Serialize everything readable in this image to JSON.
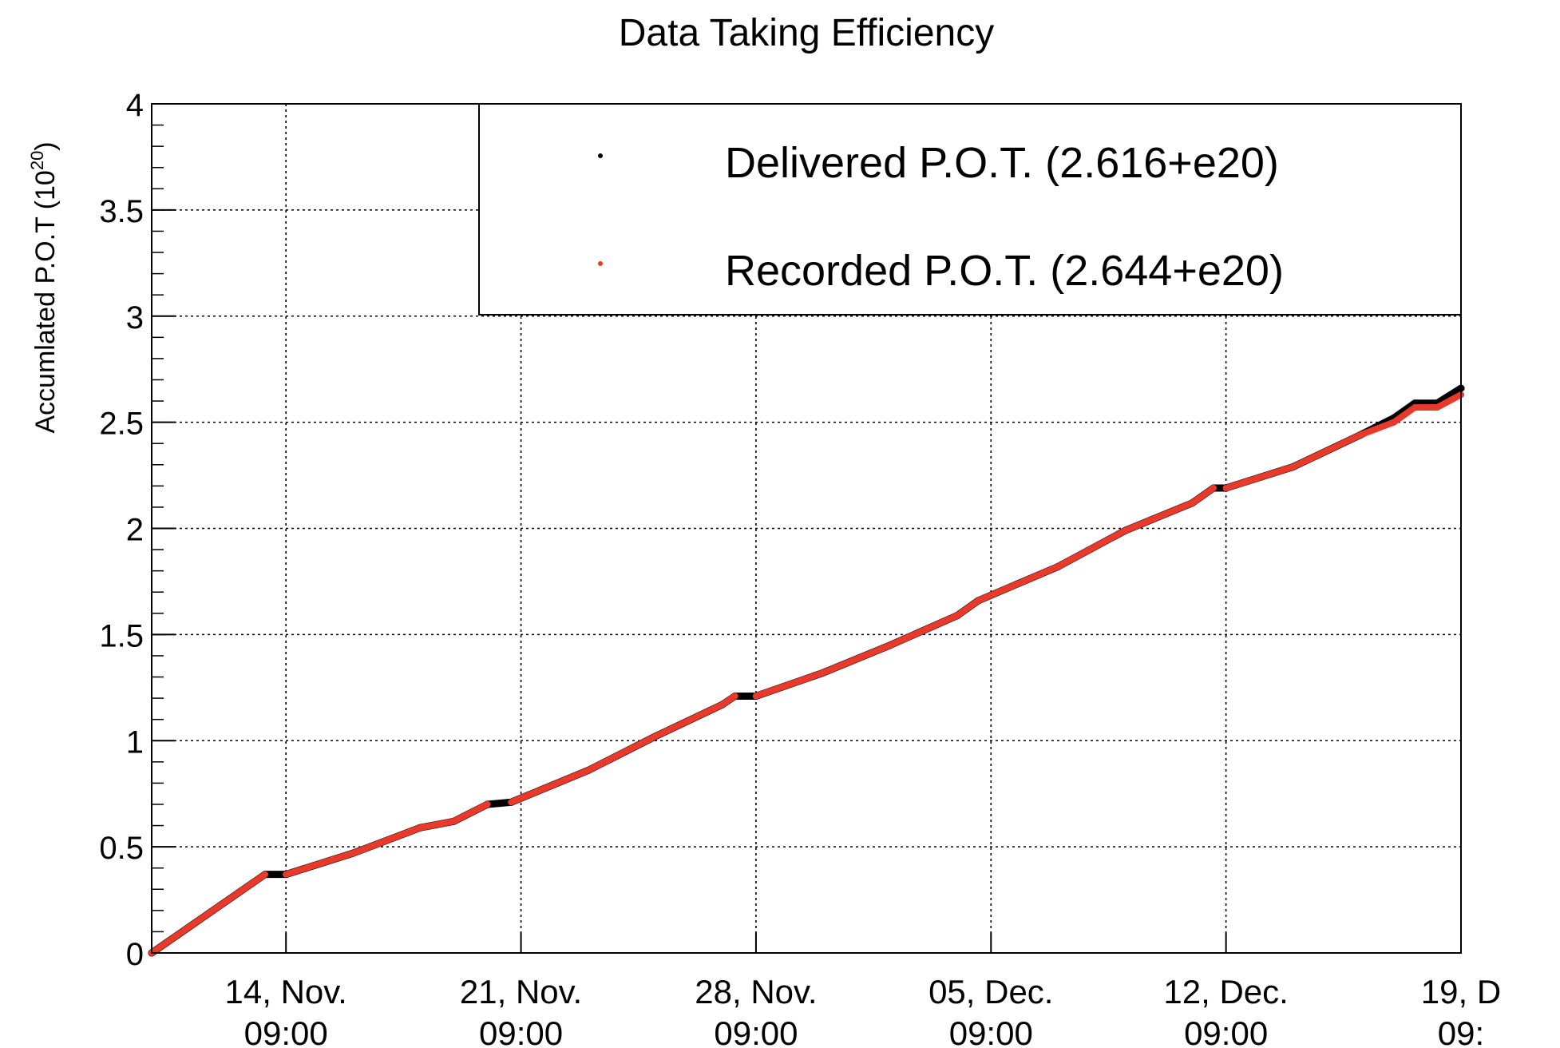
{
  "chart_data": {
    "type": "scatter",
    "title": "Data Taking Efficiency",
    "ylabel": "Accumlated P.O.T (10",
    "ylabel_exponent": "20",
    "ylabel_close": ")",
    "xlabel": "",
    "ylim": [
      0,
      4
    ],
    "xlim": [
      "2024-11-10T09:00",
      "2024-12-19T09:00"
    ],
    "year_note": "year not shown on the axis; dates only as printed",
    "grid": true,
    "legend_position": "top-right",
    "y_ticks": [
      {
        "value": 0,
        "label": "0"
      },
      {
        "value": 0.5,
        "label": "0.5"
      },
      {
        "value": 1,
        "label": "1"
      },
      {
        "value": 1.5,
        "label": "1.5"
      },
      {
        "value": 2,
        "label": "2"
      },
      {
        "value": 2.5,
        "label": "2.5"
      },
      {
        "value": 3,
        "label": "3"
      },
      {
        "value": 3.5,
        "label": "3.5"
      },
      {
        "value": 4,
        "label": "4"
      }
    ],
    "x_ticks": [
      {
        "date": "2024-11-14T09:00",
        "line1": "14, Nov.",
        "line2": "09:00"
      },
      {
        "date": "2024-11-21T09:00",
        "line1": "21, Nov.",
        "line2": "09:00"
      },
      {
        "date": "2024-11-28T09:00",
        "line1": "28, Nov.",
        "line2": "09:00"
      },
      {
        "date": "2024-12-05T09:00",
        "line1": "05, Dec.",
        "line2": "09:00"
      },
      {
        "date": "2024-12-12T09:00",
        "line1": "12, Dec.",
        "line2": "09:00"
      },
      {
        "date": "2024-12-19T09:00",
        "line1": "19, D",
        "line2": "09:"
      }
    ],
    "series": [
      {
        "name": "Delivered P.O.T. (2.616+e20)",
        "color": "#000000",
        "points": [
          [
            "2024-11-10T09:00",
            0.0
          ],
          [
            "2024-11-13T18:00",
            0.37
          ],
          [
            "2024-11-14T09:00",
            0.37
          ],
          [
            "2024-11-16T09:00",
            0.47
          ],
          [
            "2024-11-18T09:00",
            0.59
          ],
          [
            "2024-11-19T09:00",
            0.62
          ],
          [
            "2024-11-20T09:00",
            0.7
          ],
          [
            "2024-11-21T02:00",
            0.71
          ],
          [
            "2024-11-23T09:00",
            0.86
          ],
          [
            "2024-11-25T09:00",
            1.02
          ],
          [
            "2024-11-27T09:00",
            1.17
          ],
          [
            "2024-11-27T18:00",
            1.21
          ],
          [
            "2024-11-28T09:00",
            1.21
          ],
          [
            "2024-11-30T09:00",
            1.32
          ],
          [
            "2024-12-02T09:00",
            1.45
          ],
          [
            "2024-12-04T09:00",
            1.59
          ],
          [
            "2024-12-05T00:00",
            1.66
          ],
          [
            "2024-12-07T09:00",
            1.82
          ],
          [
            "2024-12-09T09:00",
            1.99
          ],
          [
            "2024-12-11T09:00",
            2.12
          ],
          [
            "2024-12-12T00:00",
            2.19
          ],
          [
            "2024-12-12T09:00",
            2.19
          ],
          [
            "2024-12-14T09:00",
            2.29
          ],
          [
            "2024-12-16T09:00",
            2.44
          ],
          [
            "2024-12-17T09:00",
            2.52
          ],
          [
            "2024-12-18T00:00",
            2.59
          ],
          [
            "2024-12-18T16:00",
            2.59
          ],
          [
            "2024-12-19T09:00",
            2.66
          ]
        ]
      },
      {
        "name": "Recorded P.O.T. (2.644+e20)",
        "color": "#e8392b",
        "points": [
          [
            "2024-11-10T09:00",
            0.0
          ],
          [
            "2024-11-13T18:00",
            0.37
          ],
          [
            "2024-11-14T09:00",
            0.37
          ],
          [
            "2024-11-16T09:00",
            0.47
          ],
          [
            "2024-11-18T09:00",
            0.59
          ],
          [
            "2024-11-19T09:00",
            0.62
          ],
          [
            "2024-11-20T09:00",
            0.7
          ],
          [
            "2024-11-21T02:00",
            0.71
          ],
          [
            "2024-11-23T09:00",
            0.86
          ],
          [
            "2024-11-25T09:00",
            1.02
          ],
          [
            "2024-11-27T09:00",
            1.17
          ],
          [
            "2024-11-27T18:00",
            1.21
          ],
          [
            "2024-11-28T09:00",
            1.21
          ],
          [
            "2024-11-30T09:00",
            1.32
          ],
          [
            "2024-12-02T09:00",
            1.45
          ],
          [
            "2024-12-04T09:00",
            1.59
          ],
          [
            "2024-12-05T00:00",
            1.66
          ],
          [
            "2024-12-07T09:00",
            1.82
          ],
          [
            "2024-12-09T09:00",
            1.99
          ],
          [
            "2024-12-11T09:00",
            2.12
          ],
          [
            "2024-12-12T00:00",
            2.19
          ],
          [
            "2024-12-12T09:00",
            2.19
          ],
          [
            "2024-12-14T09:00",
            2.29
          ],
          [
            "2024-12-16T09:00",
            2.44
          ],
          [
            "2024-12-17T09:00",
            2.5
          ],
          [
            "2024-12-18T00:00",
            2.57
          ],
          [
            "2024-12-18T16:00",
            2.57
          ],
          [
            "2024-12-19T09:00",
            2.63
          ]
        ],
        "gaps": [
          [
            "2024-11-13T18:00",
            "2024-11-14T09:00"
          ],
          [
            "2024-11-20T09:00",
            "2024-11-21T02:00"
          ],
          [
            "2024-11-27T18:00",
            "2024-11-28T09:00"
          ],
          [
            "2024-12-05T00:00",
            "2024-12-05T09:00"
          ],
          [
            "2024-12-12T00:00",
            "2024-12-12T09:00"
          ]
        ]
      }
    ]
  }
}
